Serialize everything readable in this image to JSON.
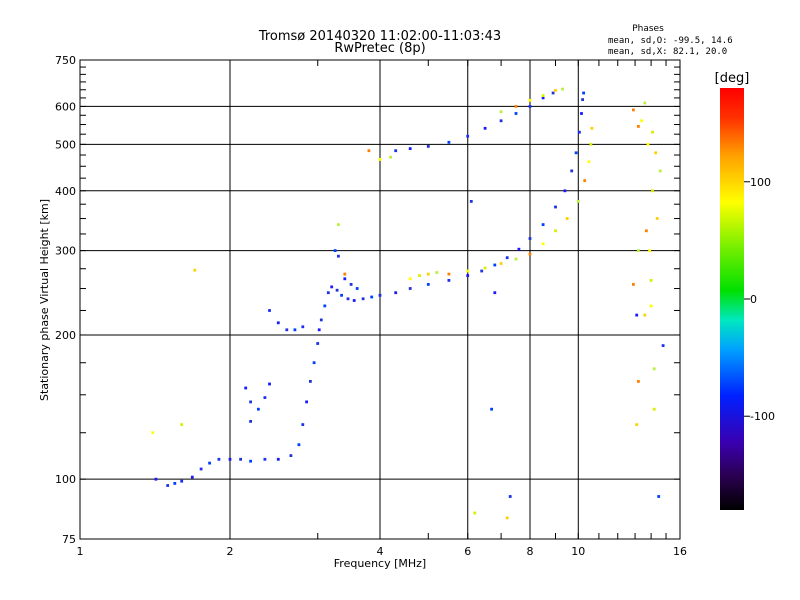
{
  "chart_data": {
    "type": "scatter",
    "title": "Tromsø 20140320 11:02:00-11:03:43",
    "subtitle": "RwPretec (8p)",
    "xlabel": "Frequency [MHz]",
    "ylabel": "Stationary phase Virtual Height [km]",
    "x_scale": "log",
    "y_scale": "log",
    "xlim": [
      1,
      16
    ],
    "ylim": [
      75,
      750
    ],
    "x_ticks": [
      1,
      2,
      4,
      6,
      8,
      10,
      16
    ],
    "x_tick_labels": [
      "1",
      "2",
      "4",
      "6",
      "8",
      "10",
      "16"
    ],
    "y_ticks": [
      75,
      100,
      200,
      300,
      400,
      500,
      600,
      750
    ],
    "y_tick_labels": [
      "75",
      "100",
      "200",
      "300",
      "400",
      "500",
      "600",
      "750"
    ],
    "grid": true,
    "phases_box": {
      "title": "Phases",
      "line1": "mean, sd,O: -99.5, 14.6",
      "line2": "mean, sd,X:  82.1, 20.0"
    },
    "colorbar": {
      "label": "[deg]",
      "range": [
        -180,
        180
      ],
      "ticks": [
        100,
        0,
        -100
      ],
      "tick_labels": [
        "100",
        "0",
        "-100"
      ]
    },
    "series": [
      {
        "mode": "O",
        "points": [
          [
            1.42,
            100
          ],
          [
            1.5,
            97
          ],
          [
            1.55,
            98
          ],
          [
            1.6,
            99
          ],
          [
            1.68,
            101
          ],
          [
            1.75,
            105
          ],
          [
            1.82,
            108
          ],
          [
            1.9,
            110
          ],
          [
            2.0,
            110
          ],
          [
            2.1,
            110
          ],
          [
            2.2,
            109
          ],
          [
            2.35,
            110
          ],
          [
            2.5,
            110
          ],
          [
            2.65,
            112
          ],
          [
            2.75,
            118
          ],
          [
            2.8,
            130
          ],
          [
            2.85,
            145
          ],
          [
            2.9,
            160
          ],
          [
            2.95,
            175
          ],
          [
            3.0,
            192
          ],
          [
            3.02,
            205
          ],
          [
            3.05,
            215
          ],
          [
            3.1,
            230
          ],
          [
            3.15,
            245
          ],
          [
            3.2,
            252
          ],
          [
            3.28,
            248
          ],
          [
            3.35,
            242
          ],
          [
            3.45,
            238
          ],
          [
            3.55,
            236
          ],
          [
            3.7,
            238
          ],
          [
            3.85,
            240
          ],
          [
            4.0,
            242
          ],
          [
            4.3,
            245
          ],
          [
            4.6,
            250
          ],
          [
            5.0,
            255
          ],
          [
            5.5,
            260
          ],
          [
            6.0,
            266
          ],
          [
            6.4,
            272
          ],
          [
            6.8,
            280
          ],
          [
            7.2,
            290
          ],
          [
            7.6,
            302
          ],
          [
            8.0,
            318
          ],
          [
            8.5,
            340
          ],
          [
            9.0,
            370
          ],
          [
            9.4,
            400
          ],
          [
            9.7,
            440
          ],
          [
            9.9,
            480
          ],
          [
            10.05,
            530
          ],
          [
            10.15,
            580
          ],
          [
            10.2,
            620
          ],
          [
            10.25,
            640
          ],
          [
            2.4,
            225
          ],
          [
            2.5,
            212
          ],
          [
            2.6,
            205
          ],
          [
            2.7,
            205
          ],
          [
            2.8,
            208
          ],
          [
            2.15,
            155
          ],
          [
            2.2,
            145
          ],
          [
            2.28,
            140
          ],
          [
            2.35,
            148
          ],
          [
            2.4,
            158
          ],
          [
            2.2,
            132
          ],
          [
            3.25,
            300
          ],
          [
            3.3,
            292
          ],
          [
            3.4,
            262
          ],
          [
            3.5,
            255
          ],
          [
            3.6,
            250
          ],
          [
            4.3,
            485
          ],
          [
            4.6,
            490
          ],
          [
            5.0,
            495
          ],
          [
            5.5,
            505
          ],
          [
            6.0,
            520
          ],
          [
            6.5,
            540
          ],
          [
            7.0,
            560
          ],
          [
            7.5,
            580
          ],
          [
            8.0,
            600
          ],
          [
            8.5,
            625
          ],
          [
            8.9,
            640
          ],
          [
            6.7,
            140
          ],
          [
            7.3,
            92
          ],
          [
            6.8,
            245
          ],
          [
            6.1,
            380
          ],
          [
            14.5,
            92
          ],
          [
            14.8,
            190
          ],
          [
            13.1,
            220
          ]
        ]
      },
      {
        "mode": "X",
        "points": [
          [
            4.6,
            262
          ],
          [
            4.8,
            266
          ],
          [
            5.0,
            268
          ],
          [
            5.2,
            270
          ],
          [
            5.5,
            268
          ],
          [
            6.0,
            272
          ],
          [
            6.5,
            276
          ],
          [
            7.0,
            282
          ],
          [
            7.5,
            288
          ],
          [
            8.0,
            295
          ],
          [
            8.5,
            310
          ],
          [
            9.0,
            330
          ],
          [
            9.5,
            350
          ],
          [
            10.0,
            380
          ],
          [
            10.3,
            420
          ],
          [
            10.5,
            460
          ],
          [
            10.6,
            500
          ],
          [
            10.65,
            540
          ],
          [
            7.0,
            585
          ],
          [
            7.5,
            600
          ],
          [
            8.0,
            618
          ],
          [
            8.5,
            632
          ],
          [
            9.0,
            648
          ],
          [
            9.3,
            652
          ],
          [
            13.2,
            545
          ],
          [
            13.4,
            560
          ],
          [
            14.1,
            530
          ],
          [
            14.3,
            480
          ],
          [
            14.6,
            440
          ],
          [
            13.7,
            330
          ],
          [
            13.9,
            300
          ],
          [
            14.0,
            260
          ],
          [
            13.6,
            220
          ],
          [
            14.2,
            170
          ],
          [
            13.2,
            160
          ],
          [
            1.4,
            125
          ],
          [
            1.6,
            130
          ],
          [
            1.7,
            273
          ],
          [
            3.3,
            340
          ],
          [
            3.4,
            268
          ],
          [
            4.0,
            465
          ],
          [
            6.2,
            85
          ],
          [
            7.2,
            83
          ],
          [
            13.6,
            610
          ],
          [
            12.9,
            590
          ],
          [
            13.8,
            500
          ],
          [
            14.1,
            400
          ],
          [
            14.4,
            350
          ],
          [
            13.2,
            300
          ],
          [
            12.9,
            255
          ],
          [
            14.0,
            230
          ],
          [
            14.2,
            140
          ],
          [
            13.1,
            130
          ],
          [
            4.2,
            470
          ],
          [
            3.8,
            485
          ]
        ]
      }
    ]
  }
}
